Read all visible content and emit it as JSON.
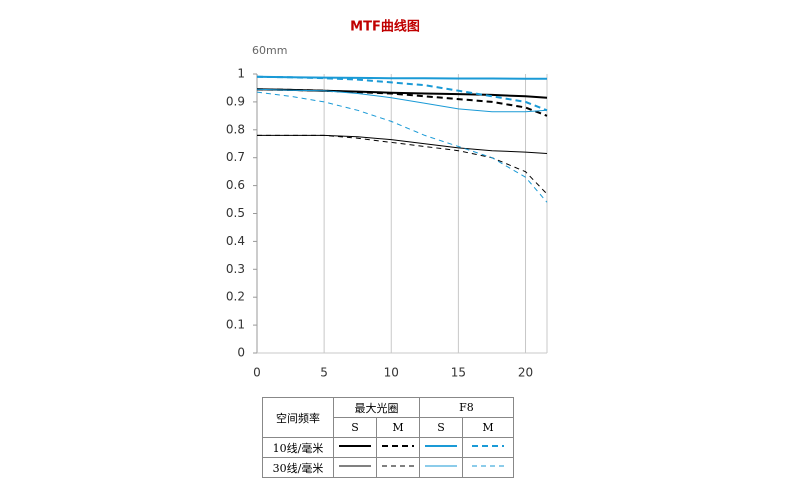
{
  "chart_data": {
    "type": "line",
    "title": "MTF曲线图",
    "subtitle": "60mm",
    "x": [
      0,
      2.5,
      5,
      7.5,
      10,
      12.5,
      15,
      17.5,
      20,
      21.6
    ],
    "xlim": [
      0,
      21.6
    ],
    "xticks": [
      0,
      5,
      10,
      15,
      20
    ],
    "ylim": [
      0,
      1
    ],
    "yticks": [
      0,
      0.1,
      0.2,
      0.3,
      0.4,
      0.5,
      0.6,
      0.7,
      0.8,
      0.9,
      1
    ],
    "grid": true,
    "series": [
      {
        "color": "#000000",
        "thick": true,
        "dashed": false,
        "values": [
          0.945,
          0.943,
          0.94,
          0.937,
          0.933,
          0.93,
          0.928,
          0.925,
          0.92,
          0.915
        ]
      },
      {
        "color": "#000000",
        "thick": true,
        "dashed": true,
        "values": [
          0.945,
          0.943,
          0.94,
          0.935,
          0.93,
          0.92,
          0.91,
          0.9,
          0.88,
          0.85
        ]
      },
      {
        "color": "#1a9ad6",
        "thick": true,
        "dashed": false,
        "values": [
          0.99,
          0.988,
          0.987,
          0.986,
          0.985,
          0.985,
          0.984,
          0.984,
          0.983,
          0.983
        ]
      },
      {
        "color": "#1a9ad6",
        "thick": true,
        "dashed": true,
        "values": [
          0.99,
          0.988,
          0.985,
          0.98,
          0.97,
          0.96,
          0.94,
          0.92,
          0.9,
          0.87
        ]
      },
      {
        "color": "#000000",
        "thick": false,
        "dashed": false,
        "values": [
          0.78,
          0.78,
          0.78,
          0.775,
          0.765,
          0.75,
          0.735,
          0.725,
          0.72,
          0.715
        ]
      },
      {
        "color": "#000000",
        "thick": false,
        "dashed": true,
        "values": [
          0.78,
          0.78,
          0.78,
          0.77,
          0.755,
          0.74,
          0.725,
          0.7,
          0.65,
          0.57
        ]
      },
      {
        "color": "#1a9ad6",
        "thick": false,
        "dashed": false,
        "values": [
          0.945,
          0.942,
          0.94,
          0.93,
          0.915,
          0.895,
          0.875,
          0.865,
          0.865,
          0.87
        ]
      },
      {
        "color": "#1a9ad6",
        "thick": false,
        "dashed": true,
        "values": [
          0.935,
          0.92,
          0.9,
          0.87,
          0.83,
          0.78,
          0.74,
          0.7,
          0.63,
          0.54
        ]
      }
    ],
    "legend": {
      "header": "空间频率",
      "groups": [
        "最大光圈",
        "F8"
      ],
      "subheads": [
        "S",
        "M"
      ],
      "rows": [
        "10线/毫米",
        "30线/毫米"
      ]
    }
  }
}
